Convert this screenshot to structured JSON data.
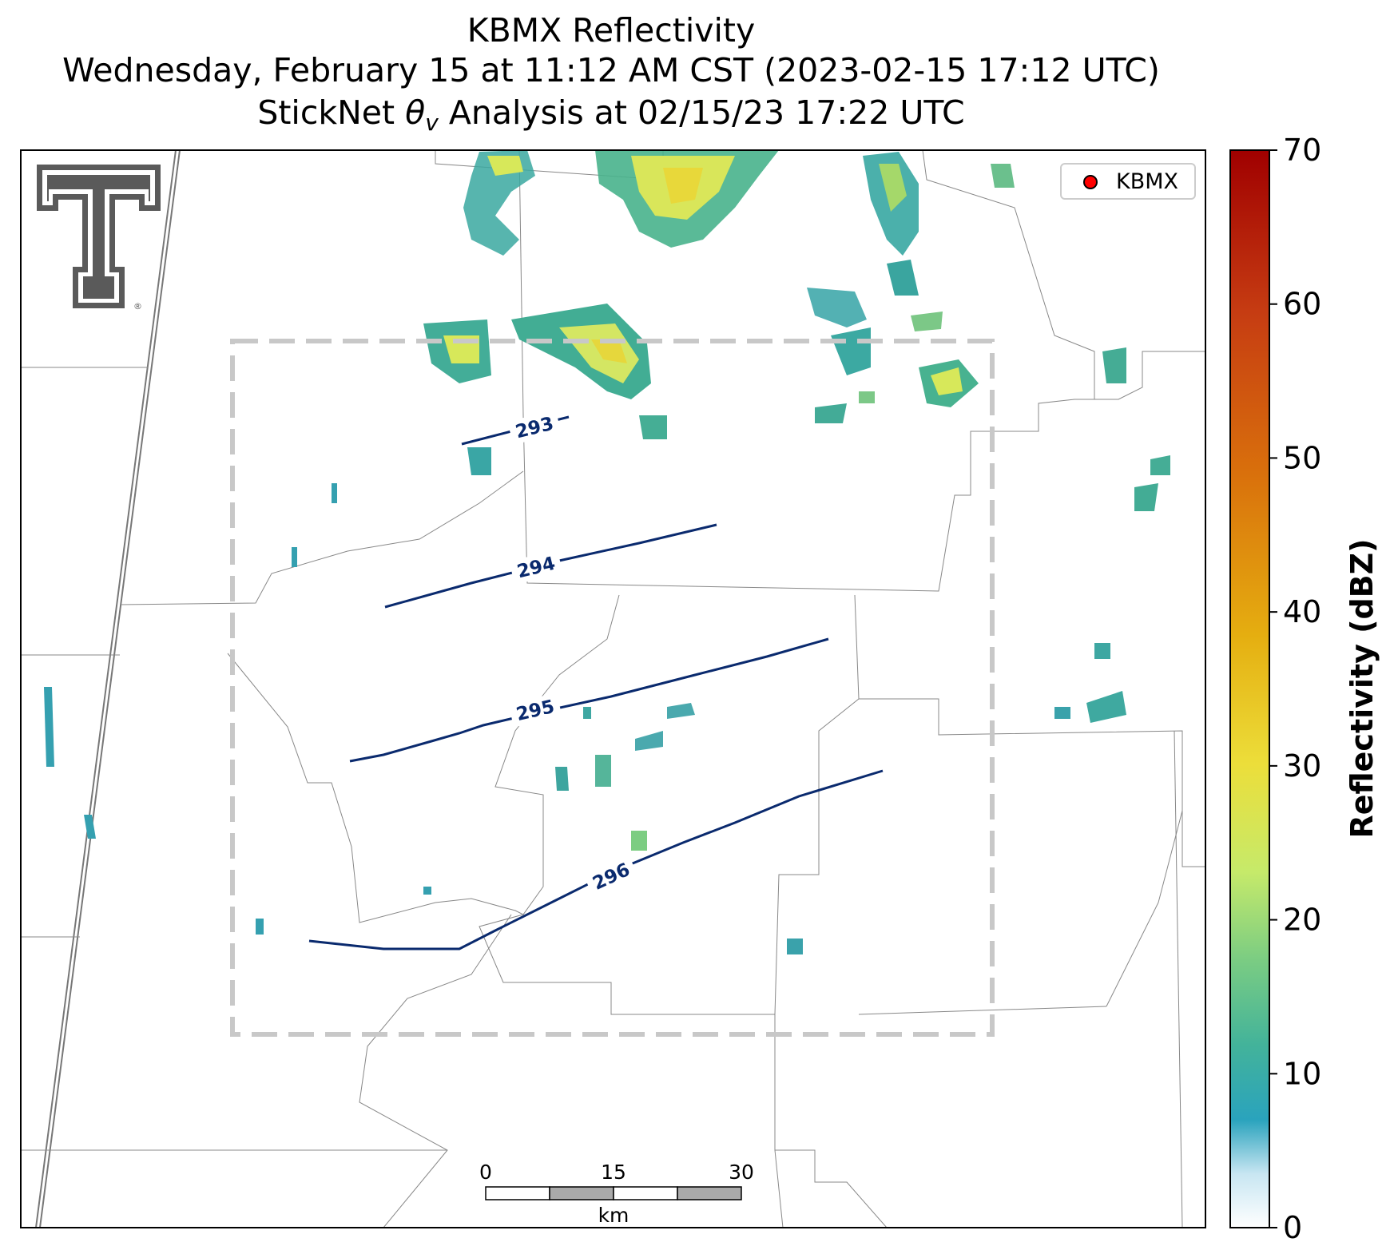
{
  "title": {
    "line1": "KBMX Reflectivity",
    "line2": "Wednesday, February 15 at 11:12 AM CST (2023-02-15 17:12 UTC)",
    "line3_prefix": "StickNet ",
    "line3_theta": "θ",
    "line3_sub": "v",
    "line3_suffix": " Analysis at 02/15/23 17:22 UTC"
  },
  "legend": {
    "label": "KBMX",
    "marker_color": "#ff0000"
  },
  "colorbar": {
    "label": "Reflectivity (dBZ)",
    "min": 0,
    "max": 70,
    "ticks": [
      "0",
      "10",
      "20",
      "30",
      "40",
      "50",
      "60",
      "70"
    ]
  },
  "scalebar": {
    "ticks": [
      "0",
      "15",
      "30"
    ],
    "unit": "km"
  },
  "contours": [
    {
      "label": "293"
    },
    {
      "label": "294"
    },
    {
      "label": "295"
    },
    {
      "label": "296"
    }
  ],
  "colors": {
    "contour": "#0a2a6e",
    "county_border": "#888888",
    "analysis_box": "#c8c8c8"
  },
  "logo": {
    "name": "texas-tech-double-t"
  }
}
